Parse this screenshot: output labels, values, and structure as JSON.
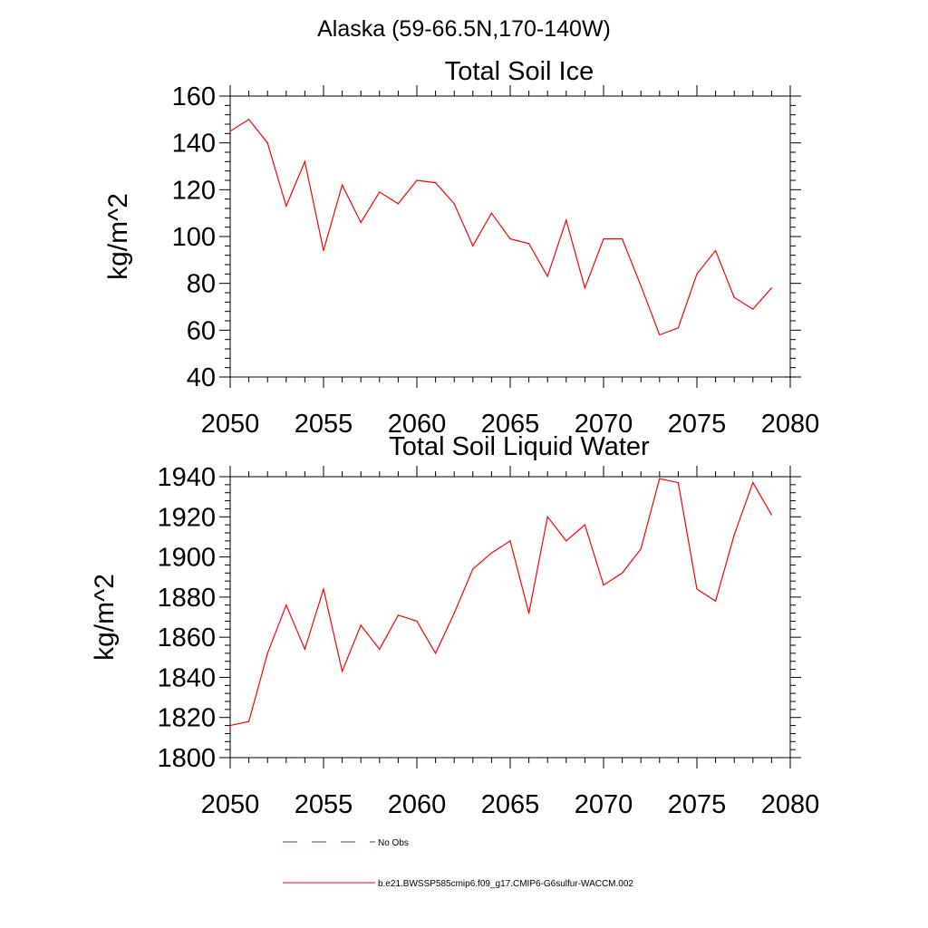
{
  "page_title": "Alaska (59-66.5N,170-140W)",
  "colors": {
    "series": "#ff0000",
    "obs": "#3a4b8c",
    "axes": "#000000",
    "background": "#ffffff"
  },
  "legend": {
    "obs_label": "No Obs",
    "model_label": "b.e21.BWSSP585cmip6.f09_g17.CMIP6-G6sulfur-WACCM.002"
  },
  "chart_data": [
    {
      "type": "line",
      "title": "Total Soil Ice",
      "xlabel": "",
      "ylabel": "kg/m^2",
      "xlim": [
        2050,
        2080
      ],
      "ylim": [
        40,
        160
      ],
      "x_ticks": [
        2050,
        2055,
        2060,
        2065,
        2070,
        2075,
        2080
      ],
      "y_ticks": [
        40,
        60,
        80,
        100,
        120,
        140,
        160
      ],
      "grid": false,
      "series": [
        {
          "name": "b.e21.BWSSP585cmip6.f09_g17.CMIP6-G6sulfur-WACCM.002",
          "x": [
            2050,
            2051,
            2052,
            2053,
            2054,
            2055,
            2056,
            2057,
            2058,
            2059,
            2060,
            2061,
            2062,
            2063,
            2064,
            2065,
            2066,
            2067,
            2068,
            2069,
            2070,
            2071,
            2072,
            2073,
            2074,
            2075,
            2076,
            2077,
            2078,
            2079
          ],
          "values": [
            145,
            150,
            140,
            113,
            132,
            94,
            122,
            106,
            119,
            114,
            124,
            123,
            114,
            96,
            110,
            99,
            97,
            83,
            107,
            78,
            99,
            99,
            79,
            58,
            61,
            84,
            94,
            74,
            69,
            78
          ]
        }
      ]
    },
    {
      "type": "line",
      "title": "Total Soil Liquid Water",
      "xlabel": "",
      "ylabel": "kg/m^2",
      "xlim": [
        2050,
        2080
      ],
      "ylim": [
        1800,
        1940
      ],
      "x_ticks": [
        2050,
        2055,
        2060,
        2065,
        2070,
        2075,
        2080
      ],
      "y_ticks": [
        1800,
        1820,
        1840,
        1860,
        1880,
        1900,
        1920,
        1940
      ],
      "grid": false,
      "series": [
        {
          "name": "b.e21.BWSSP585cmip6.f09_g17.CMIP6-G6sulfur-WACCM.002",
          "x": [
            2050,
            2051,
            2052,
            2053,
            2054,
            2055,
            2056,
            2057,
            2058,
            2059,
            2060,
            2061,
            2062,
            2063,
            2064,
            2065,
            2066,
            2067,
            2068,
            2069,
            2070,
            2071,
            2072,
            2073,
            2074,
            2075,
            2076,
            2077,
            2078,
            2079
          ],
          "values": [
            1816,
            1818,
            1852,
            1876,
            1854,
            1884,
            1843,
            1866,
            1854,
            1871,
            1868,
            1852,
            1872,
            1894,
            1902,
            1908,
            1872,
            1920,
            1908,
            1916,
            1886,
            1892,
            1904,
            1939,
            1937,
            1884,
            1878,
            1911,
            1937,
            1921
          ]
        }
      ]
    }
  ]
}
